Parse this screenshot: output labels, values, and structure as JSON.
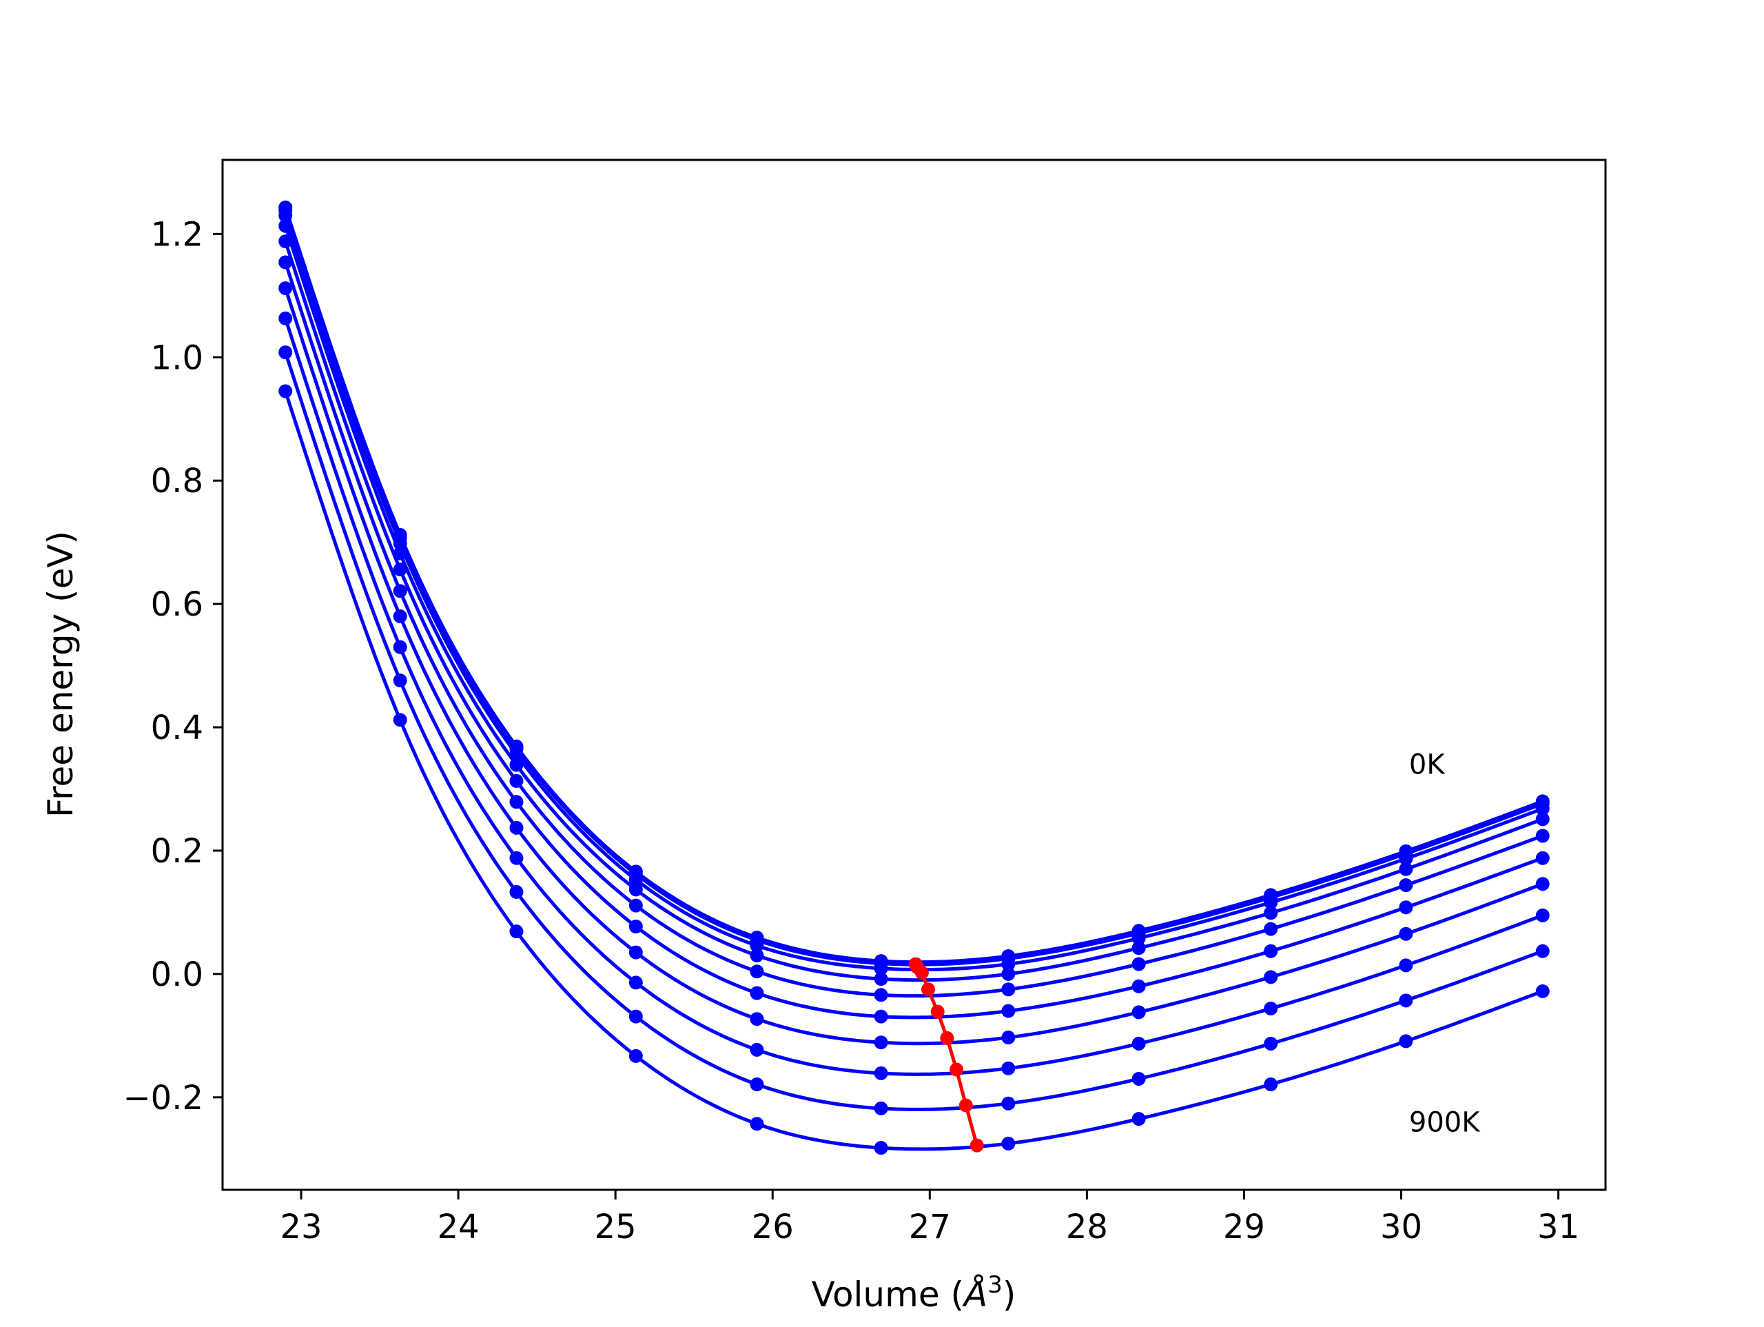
{
  "chart_data": {
    "type": "line",
    "title": "",
    "xlabel": "Volume (",
    "xlabel_symbol": "Å",
    "xlabel_superscript": "3",
    "xlabel_close": ")",
    "ylabel": "Free energy (eV)",
    "xlim": [
      22.5,
      31.3
    ],
    "ylim": [
      -0.35,
      1.32
    ],
    "xticks": [
      23,
      24,
      25,
      26,
      27,
      28,
      29,
      30,
      31
    ],
    "xtick_labels": [
      "23",
      "24",
      "25",
      "26",
      "27",
      "28",
      "29",
      "30",
      "31"
    ],
    "yticks": [
      -0.2,
      0.0,
      0.2,
      0.4,
      0.6,
      0.8,
      1.0,
      1.2
    ],
    "ytick_labels": [
      "−0.2",
      "0.0",
      "0.2",
      "0.4",
      "0.6",
      "0.8",
      "1.0",
      "1.2"
    ],
    "grid": false,
    "colors": {
      "curves": "#0000ff",
      "minima": "#ff0000",
      "axes": "#000000"
    },
    "annotations": [
      {
        "text": "0K",
        "x": 30.05,
        "y": 0.34
      },
      {
        "text": "900K",
        "x": 30.05,
        "y": -0.24
      }
    ],
    "x": [
      22.9,
      23.63,
      24.37,
      25.13,
      25.9,
      26.69,
      27.5,
      28.33,
      29.17,
      30.03,
      30.9
    ],
    "series": [
      {
        "values": [
          1.243,
          0.712,
          0.369,
          0.166,
          0.059,
          0.021,
          0.029,
          0.07,
          0.128,
          0.199,
          0.28
        ]
      },
      {
        "values": [
          1.238,
          0.707,
          0.365,
          0.162,
          0.055,
          0.017,
          0.025,
          0.066,
          0.124,
          0.195,
          0.276
        ]
      },
      {
        "values": [
          1.23,
          0.698,
          0.356,
          0.153,
          0.046,
          0.009,
          0.016,
          0.058,
          0.116,
          0.187,
          0.268
        ]
      },
      {
        "values": [
          1.213,
          0.682,
          0.339,
          0.137,
          0.03,
          -0.008,
          0.0,
          0.042,
          0.099,
          0.17,
          0.251
        ]
      },
      {
        "values": [
          1.188,
          0.656,
          0.313,
          0.111,
          0.004,
          -0.034,
          -0.025,
          0.016,
          0.073,
          0.144,
          0.224
        ]
      },
      {
        "values": [
          1.154,
          0.621,
          0.279,
          0.077,
          -0.031,
          -0.069,
          -0.06,
          -0.02,
          0.037,
          0.108,
          0.188
        ]
      },
      {
        "values": [
          1.112,
          0.58,
          0.237,
          0.035,
          -0.073,
          -0.111,
          -0.103,
          -0.062,
          -0.005,
          0.065,
          0.146
        ]
      },
      {
        "values": [
          1.063,
          0.53,
          0.188,
          -0.014,
          -0.123,
          -0.161,
          -0.153,
          -0.113,
          -0.056,
          0.014,
          0.095
        ]
      },
      {
        "values": [
          1.008,
          0.476,
          0.133,
          -0.069,
          -0.179,
          -0.218,
          -0.21,
          -0.17,
          -0.113,
          -0.043,
          0.037
        ]
      },
      {
        "values": [
          0.945,
          0.412,
          0.069,
          -0.133,
          -0.243,
          -0.282,
          -0.275,
          -0.235,
          -0.179,
          -0.109,
          -0.028
        ]
      }
    ],
    "minima": {
      "x": [
        26.91,
        26.92,
        26.95,
        26.99,
        27.05,
        27.11,
        27.17,
        27.23,
        27.3
      ],
      "y": [
        0.016,
        0.011,
        0.002,
        -0.025,
        -0.061,
        -0.104,
        -0.155,
        -0.213,
        -0.278
      ]
    }
  }
}
